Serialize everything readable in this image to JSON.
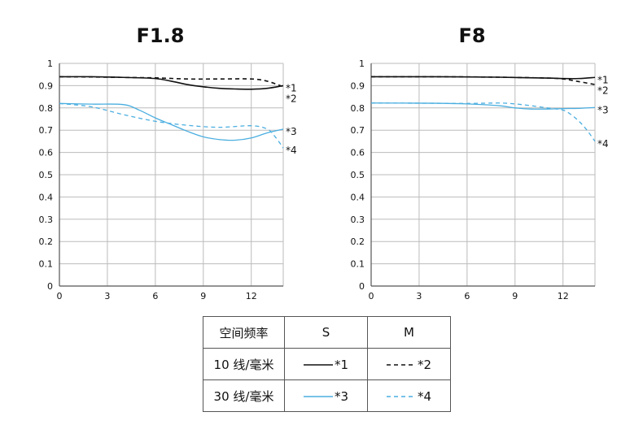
{
  "chart_data": [
    {
      "type": "line",
      "title": "F1.8",
      "xlim": [
        0,
        14
      ],
      "ylim": [
        0,
        1
      ],
      "x_ticks": [
        0,
        3,
        6,
        9,
        12
      ],
      "y_ticks": [
        0,
        0.1,
        0.2,
        0.3,
        0.4,
        0.5,
        0.6,
        0.7,
        0.8,
        0.9,
        1
      ],
      "y_tick_labels": [
        "0",
        "0.1",
        "0.2",
        "0.3",
        "0.4",
        "0.5",
        "0.6",
        "0.7",
        "0.8",
        "0.9",
        "1"
      ],
      "grid": true,
      "series": [
        {
          "name": "*1",
          "style": "solid",
          "color": "#111111",
          "x": [
            0,
            2,
            4,
            6,
            7,
            8,
            9,
            10,
            11,
            12,
            13,
            14
          ],
          "y": [
            0.94,
            0.94,
            0.937,
            0.932,
            0.92,
            0.905,
            0.895,
            0.888,
            0.885,
            0.884,
            0.888,
            0.9
          ]
        },
        {
          "name": "*2",
          "style": "dashed",
          "color": "#111111",
          "x": [
            0,
            2,
            4,
            6,
            8,
            10,
            12,
            13,
            14
          ],
          "y": [
            0.94,
            0.939,
            0.937,
            0.935,
            0.93,
            0.93,
            0.93,
            0.92,
            0.895
          ]
        },
        {
          "name": "*3",
          "style": "solid",
          "color": "#4aaee0",
          "x": [
            0,
            2,
            4,
            5,
            6,
            7,
            8,
            9,
            10,
            11,
            12,
            13,
            14
          ],
          "y": [
            0.82,
            0.817,
            0.815,
            0.79,
            0.755,
            0.725,
            0.695,
            0.67,
            0.658,
            0.655,
            0.665,
            0.688,
            0.705
          ]
        },
        {
          "name": "*4",
          "style": "dashed",
          "color": "#4aaee0",
          "x": [
            0,
            2,
            4,
            6,
            8,
            10,
            12,
            13,
            13.5,
            14
          ],
          "y": [
            0.82,
            0.805,
            0.77,
            0.74,
            0.722,
            0.713,
            0.72,
            0.705,
            0.67,
            0.62
          ]
        }
      ]
    },
    {
      "type": "line",
      "title": "F8",
      "xlim": [
        0,
        14
      ],
      "ylim": [
        0,
        1
      ],
      "x_ticks": [
        0,
        3,
        6,
        9,
        12
      ],
      "y_ticks": [
        0,
        0.1,
        0.2,
        0.3,
        0.4,
        0.5,
        0.6,
        0.7,
        0.8,
        0.9,
        1
      ],
      "y_tick_labels": [
        "0",
        "0.1",
        "0.2",
        "0.3",
        "0.4",
        "0.5",
        "0.6",
        "0.7",
        "0.8",
        "0.9",
        "1"
      ],
      "grid": true,
      "series": [
        {
          "name": "*1",
          "style": "solid",
          "color": "#111111",
          "x": [
            0,
            4,
            8,
            11,
            12,
            13,
            14
          ],
          "y": [
            0.94,
            0.94,
            0.938,
            0.934,
            0.932,
            0.932,
            0.937
          ]
        },
        {
          "name": "*2",
          "style": "dashed",
          "color": "#111111",
          "x": [
            0,
            4,
            8,
            11,
            12,
            13,
            14
          ],
          "y": [
            0.94,
            0.94,
            0.938,
            0.934,
            0.93,
            0.918,
            0.905
          ]
        },
        {
          "name": "*3",
          "style": "solid",
          "color": "#4aaee0",
          "x": [
            0,
            4,
            6,
            8,
            9,
            10,
            11,
            12,
            13,
            14
          ],
          "y": [
            0.822,
            0.821,
            0.818,
            0.81,
            0.8,
            0.795,
            0.795,
            0.797,
            0.798,
            0.802
          ]
        },
        {
          "name": "*4",
          "style": "dashed",
          "color": "#4aaee0",
          "x": [
            0,
            4,
            6,
            8,
            9,
            10,
            11,
            12,
            12.5,
            13,
            13.5,
            14
          ],
          "y": [
            0.822,
            0.821,
            0.82,
            0.822,
            0.818,
            0.81,
            0.8,
            0.79,
            0.77,
            0.74,
            0.7,
            0.65
          ]
        }
      ]
    }
  ],
  "legend_table": {
    "header": [
      "空间频率",
      "S",
      "M"
    ],
    "rows": [
      {
        "label": "10 线/毫米",
        "s": "*1",
        "m": "*2"
      },
      {
        "label": "30 线/毫米",
        "s": "*3",
        "m": "*4"
      }
    ]
  },
  "colors": {
    "dark": "#111111",
    "light": "#4aaee0",
    "grid": "#bbbbbb",
    "axis": "#555555"
  }
}
